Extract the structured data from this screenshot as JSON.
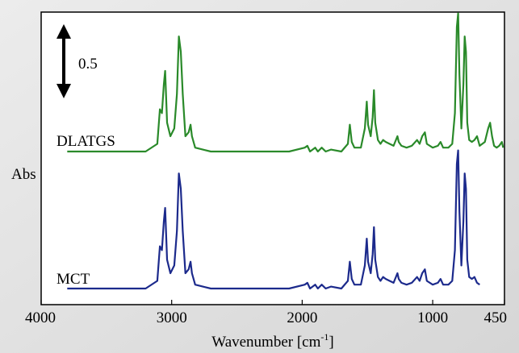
{
  "chart_data": {
    "type": "line",
    "xlabel": "Wavenumber [cm",
    "xlabel_sup": "-1",
    "xlabel_end": "]",
    "ylabel": "Abs",
    "xlim": [
      4000,
      450
    ],
    "x_reversed": true,
    "xticks": [
      {
        "value": 4000,
        "label": "4000"
      },
      {
        "value": 3000,
        "label": "3000"
      },
      {
        "value": 2000,
        "label": "2000"
      },
      {
        "value": 1000,
        "label": "1000"
      },
      {
        "value": 450,
        "label": "450"
      }
    ],
    "scale_bar": {
      "value": 0.5,
      "label": "0.5"
    },
    "series": [
      {
        "name": "DLATGS",
        "color": "#2a8a2a",
        "baseline": 0,
        "points": [
          [
            3800,
            0.0
          ],
          [
            3500,
            0.0
          ],
          [
            3200,
            0.0
          ],
          [
            3110,
            0.04
          ],
          [
            3090,
            0.22
          ],
          [
            3075,
            0.2
          ],
          [
            3060,
            0.35
          ],
          [
            3050,
            0.42
          ],
          [
            3035,
            0.15
          ],
          [
            3010,
            0.08
          ],
          [
            2980,
            0.12
          ],
          [
            2960,
            0.3
          ],
          [
            2945,
            0.6
          ],
          [
            2930,
            0.52
          ],
          [
            2915,
            0.3
          ],
          [
            2895,
            0.08
          ],
          [
            2870,
            0.1
          ],
          [
            2855,
            0.14
          ],
          [
            2845,
            0.08
          ],
          [
            2820,
            0.02
          ],
          [
            2700,
            0.0
          ],
          [
            2400,
            0.0
          ],
          [
            2100,
            0.0
          ],
          [
            1980,
            0.02
          ],
          [
            1960,
            0.03
          ],
          [
            1940,
            0.0
          ],
          [
            1900,
            0.02
          ],
          [
            1880,
            0.0
          ],
          [
            1850,
            0.02
          ],
          [
            1820,
            0.0
          ],
          [
            1780,
            0.01
          ],
          [
            1700,
            0.0
          ],
          [
            1650,
            0.04
          ],
          [
            1635,
            0.14
          ],
          [
            1620,
            0.05
          ],
          [
            1600,
            0.02
          ],
          [
            1550,
            0.02
          ],
          [
            1520,
            0.12
          ],
          [
            1505,
            0.26
          ],
          [
            1495,
            0.14
          ],
          [
            1475,
            0.08
          ],
          [
            1460,
            0.18
          ],
          [
            1450,
            0.32
          ],
          [
            1440,
            0.15
          ],
          [
            1420,
            0.06
          ],
          [
            1400,
            0.04
          ],
          [
            1380,
            0.06
          ],
          [
            1360,
            0.05
          ],
          [
            1330,
            0.04
          ],
          [
            1300,
            0.03
          ],
          [
            1270,
            0.08
          ],
          [
            1260,
            0.05
          ],
          [
            1240,
            0.03
          ],
          [
            1200,
            0.02
          ],
          [
            1160,
            0.03
          ],
          [
            1120,
            0.06
          ],
          [
            1100,
            0.04
          ],
          [
            1080,
            0.08
          ],
          [
            1060,
            0.1
          ],
          [
            1045,
            0.04
          ],
          [
            1000,
            0.02
          ],
          [
            960,
            0.03
          ],
          [
            940,
            0.05
          ],
          [
            920,
            0.02
          ],
          [
            880,
            0.02
          ],
          [
            850,
            0.04
          ],
          [
            830,
            0.2
          ],
          [
            815,
            0.65
          ],
          [
            805,
            0.72
          ],
          [
            795,
            0.4
          ],
          [
            780,
            0.12
          ],
          [
            765,
            0.35
          ],
          [
            755,
            0.6
          ],
          [
            745,
            0.52
          ],
          [
            735,
            0.15
          ],
          [
            720,
            0.06
          ],
          [
            700,
            0.05
          ],
          [
            680,
            0.06
          ],
          [
            660,
            0.08
          ],
          [
            640,
            0.03
          ],
          [
            600,
            0.05
          ],
          [
            575,
            0.12
          ],
          [
            560,
            0.15
          ],
          [
            545,
            0.08
          ],
          [
            530,
            0.03
          ],
          [
            510,
            0.02
          ],
          [
            490,
            0.03
          ],
          [
            470,
            0.05
          ],
          [
            460,
            0.02
          ]
        ],
        "label_position": "left"
      },
      {
        "name": "MCT",
        "color": "#1c2a8c",
        "baseline": 0,
        "points": [
          [
            3800,
            0.0
          ],
          [
            3500,
            0.0
          ],
          [
            3200,
            0.0
          ],
          [
            3110,
            0.04
          ],
          [
            3090,
            0.22
          ],
          [
            3075,
            0.2
          ],
          [
            3060,
            0.35
          ],
          [
            3050,
            0.42
          ],
          [
            3035,
            0.15
          ],
          [
            3010,
            0.08
          ],
          [
            2980,
            0.12
          ],
          [
            2960,
            0.3
          ],
          [
            2945,
            0.6
          ],
          [
            2930,
            0.52
          ],
          [
            2915,
            0.3
          ],
          [
            2895,
            0.08
          ],
          [
            2870,
            0.1
          ],
          [
            2855,
            0.14
          ],
          [
            2845,
            0.08
          ],
          [
            2820,
            0.02
          ],
          [
            2700,
            0.0
          ],
          [
            2400,
            0.0
          ],
          [
            2100,
            0.0
          ],
          [
            1980,
            0.02
          ],
          [
            1960,
            0.03
          ],
          [
            1940,
            0.0
          ],
          [
            1900,
            0.02
          ],
          [
            1880,
            0.0
          ],
          [
            1850,
            0.02
          ],
          [
            1820,
            0.0
          ],
          [
            1780,
            0.01
          ],
          [
            1700,
            0.0
          ],
          [
            1650,
            0.04
          ],
          [
            1635,
            0.14
          ],
          [
            1620,
            0.05
          ],
          [
            1600,
            0.02
          ],
          [
            1550,
            0.02
          ],
          [
            1520,
            0.12
          ],
          [
            1505,
            0.26
          ],
          [
            1495,
            0.14
          ],
          [
            1475,
            0.08
          ],
          [
            1460,
            0.18
          ],
          [
            1450,
            0.32
          ],
          [
            1440,
            0.15
          ],
          [
            1420,
            0.06
          ],
          [
            1400,
            0.04
          ],
          [
            1380,
            0.06
          ],
          [
            1360,
            0.05
          ],
          [
            1330,
            0.04
          ],
          [
            1300,
            0.03
          ],
          [
            1270,
            0.08
          ],
          [
            1260,
            0.05
          ],
          [
            1240,
            0.03
          ],
          [
            1200,
            0.02
          ],
          [
            1160,
            0.03
          ],
          [
            1120,
            0.06
          ],
          [
            1100,
            0.04
          ],
          [
            1080,
            0.08
          ],
          [
            1060,
            0.1
          ],
          [
            1045,
            0.04
          ],
          [
            1000,
            0.02
          ],
          [
            960,
            0.03
          ],
          [
            940,
            0.05
          ],
          [
            920,
            0.02
          ],
          [
            880,
            0.02
          ],
          [
            850,
            0.04
          ],
          [
            830,
            0.2
          ],
          [
            815,
            0.65
          ],
          [
            805,
            0.72
          ],
          [
            795,
            0.4
          ],
          [
            780,
            0.12
          ],
          [
            765,
            0.35
          ],
          [
            755,
            0.6
          ],
          [
            745,
            0.52
          ],
          [
            735,
            0.15
          ],
          [
            720,
            0.06
          ],
          [
            700,
            0.05
          ],
          [
            680,
            0.06
          ],
          [
            660,
            0.03
          ],
          [
            640,
            0.02
          ]
        ],
        "label_position": "left"
      }
    ]
  }
}
